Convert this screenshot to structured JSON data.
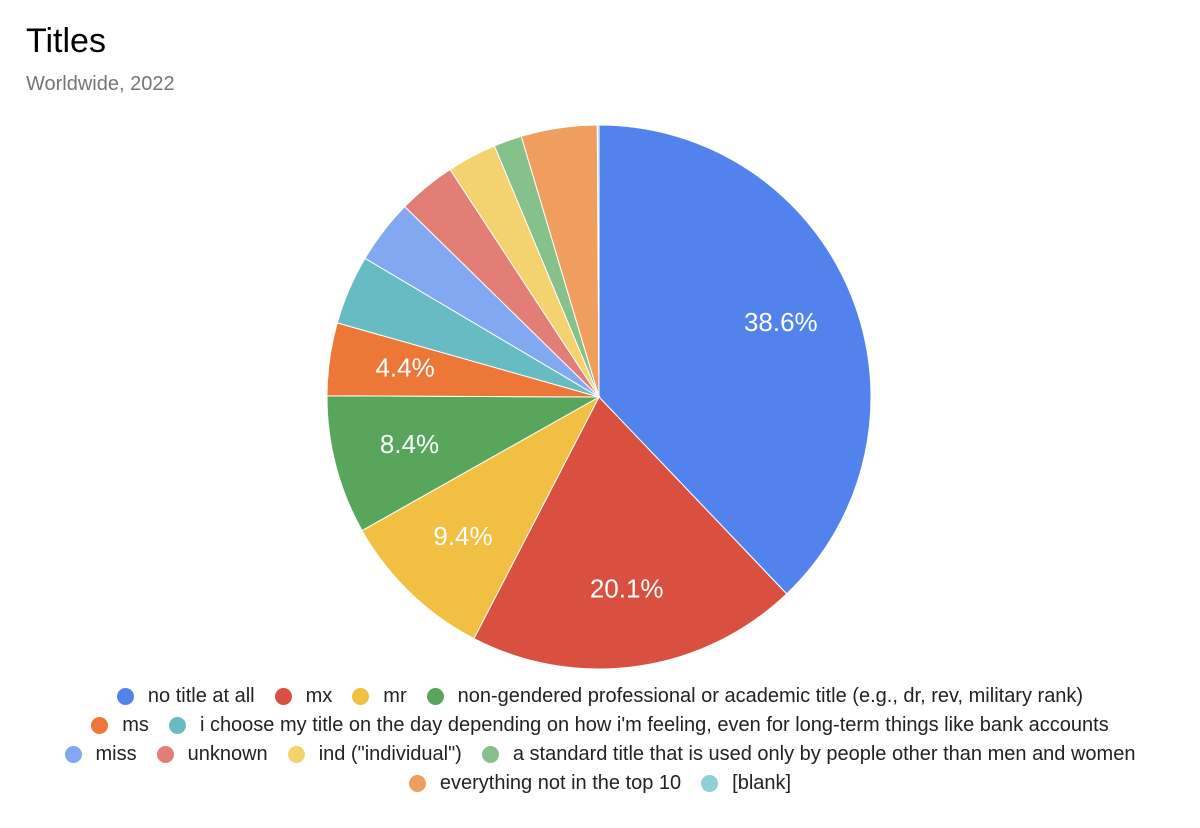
{
  "chart_data": {
    "type": "pie",
    "title": "Titles",
    "subtitle": "Worldwide, 2022",
    "legend_position": "bottom",
    "slices": [
      {
        "label": "no title at all",
        "value": 38.6,
        "value_label": "38.6%",
        "color": "#5283EC"
      },
      {
        "label": "mx",
        "value": 20.1,
        "value_label": "20.1%",
        "color": "#D95040"
      },
      {
        "label": "mr",
        "value": 9.4,
        "value_label": "9.4%",
        "color": "#F1BF42"
      },
      {
        "label": "non-gendered professional or academic title (e.g., dr, rev, military rank)",
        "value": 8.4,
        "value_label": "8.4%",
        "color": "#58A65C"
      },
      {
        "label": "ms",
        "value": 4.4,
        "value_label": "4.4%",
        "color": "#EC7736"
      },
      {
        "label": "i choose my title on the day depending on how i'm feeling, even for long-term things like bank accounts",
        "value": 4.2,
        "value_label": "",
        "color": "#67BCC4"
      },
      {
        "label": "miss",
        "value": 3.9,
        "value_label": "",
        "color": "#82A8F1"
      },
      {
        "label": "unknown",
        "value": 3.5,
        "value_label": "",
        "color": "#E27E75"
      },
      {
        "label": "ind (\"individual\")",
        "value": 3.0,
        "value_label": "",
        "color": "#F4D36E"
      },
      {
        "label": "a standard title that is used only by people other than men and women",
        "value": 1.7,
        "value_label": "",
        "color": "#86C08A"
      },
      {
        "label": "everything not in the top 10",
        "value": 4.6,
        "value_label": "",
        "color": "#EF9E5E"
      },
      {
        "label": "[blank]",
        "value": 0.1,
        "value_label": "",
        "color": "#8FD0D6"
      }
    ]
  }
}
